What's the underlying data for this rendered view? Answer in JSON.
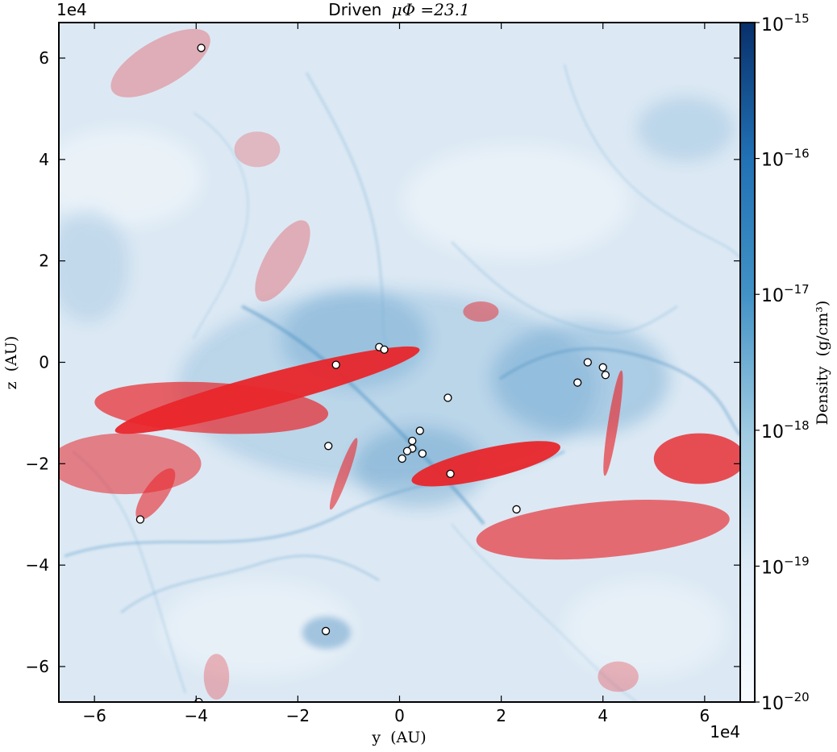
{
  "chart_data": {
    "type": "heatmap",
    "title_prefix": "Driven",
    "title_math": "μΦ =23.1",
    "xlabel": "y  (AU)",
    "ylabel": "z  (AU)",
    "x_multiplier": "1e4",
    "y_multiplier": "1e4",
    "xlim": [
      -6.7,
      6.7
    ],
    "ylim": [
      -6.7,
      6.7
    ],
    "x_ticks": [
      -6,
      -4,
      -2,
      0,
      2,
      4,
      6
    ],
    "y_ticks": [
      -6,
      -4,
      -2,
      0,
      2,
      4,
      6
    ],
    "x_tick_labels": [
      "−6",
      "−4",
      "−2",
      "0",
      "2",
      "4",
      "6"
    ],
    "y_tick_labels": [
      "−6",
      "−4",
      "−2",
      "0",
      "2",
      "4",
      "6"
    ],
    "colorbar": {
      "label": "Density  (g/cm³)",
      "scale": "log",
      "range": [
        1e-20,
        1e-15
      ],
      "tick_exponents": [
        -20,
        -19,
        -18,
        -17,
        -16,
        -15
      ],
      "tick_labels": [
        "10",
        "10",
        "10",
        "10",
        "10",
        "10"
      ],
      "tick_sups": [
        "−20",
        "−19",
        "−18",
        "−17",
        "−16",
        "−15"
      ],
      "cmap": [
        "#f7fbff",
        "#deebf7",
        "#9ecae1",
        "#4292c6",
        "#2171b5",
        "#08306b"
      ]
    },
    "background_color": "#dce9f4",
    "filament_color": "#4d94c4",
    "outflow_color": "#e8262b",
    "star_color": "#ffffff",
    "stars": [
      {
        "x": -3.9,
        "y": 6.2
      },
      {
        "x": -0.4,
        "y": 0.3
      },
      {
        "x": -0.3,
        "y": 0.25
      },
      {
        "x": -1.25,
        "y": -0.05
      },
      {
        "x": 0.95,
        "y": -0.7
      },
      {
        "x": 0.4,
        "y": -1.35
      },
      {
        "x": 0.25,
        "y": -1.55
      },
      {
        "x": 0.25,
        "y": -1.7
      },
      {
        "x": 0.15,
        "y": -1.75
      },
      {
        "x": 0.45,
        "y": -1.8
      },
      {
        "x": 0.05,
        "y": -1.9
      },
      {
        "x": -1.4,
        "y": -1.65
      },
      {
        "x": 1.0,
        "y": -2.2
      },
      {
        "x": 2.3,
        "y": -2.9
      },
      {
        "x": -5.1,
        "y": -3.1
      },
      {
        "x": -1.45,
        "y": -5.3
      },
      {
        "x": -3.95,
        "y": -6.7
      },
      {
        "x": 3.5,
        "y": -0.4
      },
      {
        "x": 3.7,
        "y": 0.0
      },
      {
        "x": 4.0,
        "y": -0.1
      },
      {
        "x": 4.05,
        "y": -0.25
      }
    ],
    "outflows": [
      {
        "cx": -2.6,
        "cy": -0.55,
        "rx": 3.1,
        "ry": 0.32,
        "angle": -15,
        "opacity": 0.95
      },
      {
        "cx": 1.7,
        "cy": -2.0,
        "rx": 1.5,
        "ry": 0.3,
        "angle": -13,
        "opacity": 0.95
      },
      {
        "cx": -3.7,
        "cy": -0.9,
        "rx": 2.3,
        "ry": 0.5,
        "angle": 3,
        "opacity": 0.7
      },
      {
        "cx": -5.4,
        "cy": -2.0,
        "rx": 1.5,
        "ry": 0.6,
        "angle": 0,
        "opacity": 0.55
      },
      {
        "cx": 4.0,
        "cy": -3.3,
        "rx": 2.5,
        "ry": 0.55,
        "angle": -5,
        "opacity": 0.65
      },
      {
        "cx": 5.9,
        "cy": -1.9,
        "rx": 0.9,
        "ry": 0.5,
        "angle": 0,
        "opacity": 0.8
      },
      {
        "cx": 4.2,
        "cy": -1.2,
        "rx": 1.05,
        "ry": 0.1,
        "angle": -81,
        "opacity": 0.65
      },
      {
        "cx": -1.1,
        "cy": -2.2,
        "rx": 0.75,
        "ry": 0.1,
        "angle": -70,
        "opacity": 0.6
      },
      {
        "cx": -4.8,
        "cy": -2.6,
        "rx": 0.6,
        "ry": 0.22,
        "angle": -55,
        "opacity": 0.6
      },
      {
        "cx": -4.7,
        "cy": 5.9,
        "rx": 1.1,
        "ry": 0.45,
        "angle": -30,
        "opacity": 0.3
      },
      {
        "cx": -2.8,
        "cy": 4.2,
        "rx": 0.45,
        "ry": 0.35,
        "angle": 0,
        "opacity": 0.25
      },
      {
        "cx": -2.3,
        "cy": 2.0,
        "rx": 0.9,
        "ry": 0.35,
        "angle": -60,
        "opacity": 0.3
      },
      {
        "cx": 1.6,
        "cy": 1.0,
        "rx": 0.35,
        "ry": 0.2,
        "angle": 0,
        "opacity": 0.5
      },
      {
        "cx": 4.3,
        "cy": -6.2,
        "rx": 0.4,
        "ry": 0.3,
        "angle": 0,
        "opacity": 0.3
      },
      {
        "cx": -3.6,
        "cy": -6.2,
        "rx": 0.25,
        "ry": 0.45,
        "angle": 0,
        "opacity": 0.3
      }
    ]
  }
}
